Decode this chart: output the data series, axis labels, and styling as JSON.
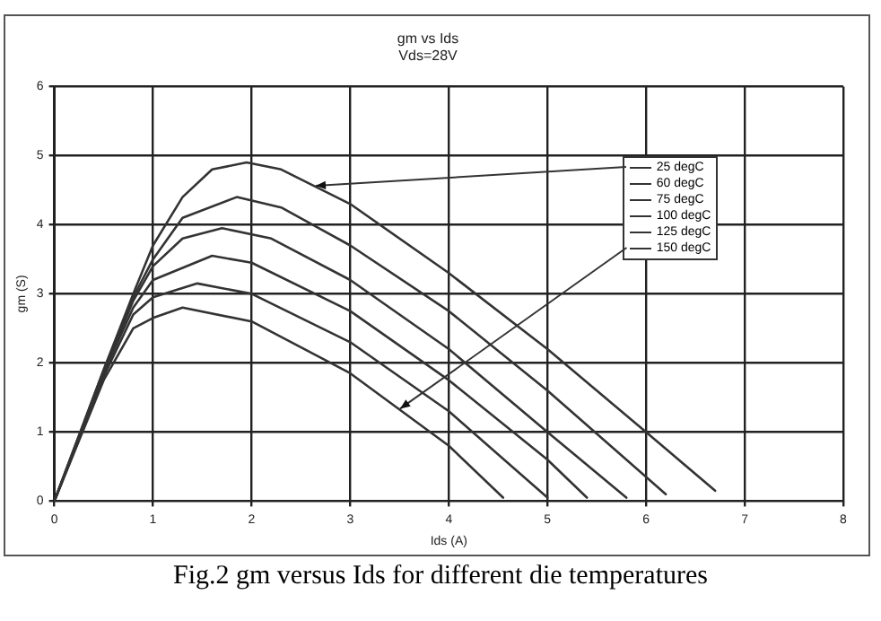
{
  "chart_data": {
    "type": "line",
    "title": "gm vs Ids",
    "subtitle": "Vds=28V",
    "xlabel": "Ids (A)",
    "ylabel": "gm (S)",
    "annotations": [
      "Fig.2 gm versus Ids for different die temperatures"
    ],
    "xlim": [
      0,
      8
    ],
    "ylim": [
      0,
      6
    ],
    "xticks": [
      0,
      1,
      2,
      3,
      4,
      5,
      6,
      7,
      8
    ],
    "yticks": [
      0,
      1,
      2,
      3,
      4,
      5,
      6
    ],
    "grid": true,
    "legend": "right",
    "marker": "none",
    "line_style": "solid",
    "series": [
      {
        "name": "25 degC",
        "color": "#333333",
        "x": [
          0,
          0.5,
          0.8,
          1.0,
          1.3,
          1.6,
          1.95,
          2.3,
          3,
          4,
          5,
          6,
          6.7
        ],
        "values": [
          0,
          1.9,
          3.0,
          3.7,
          4.4,
          4.8,
          4.9,
          4.8,
          4.3,
          3.3,
          2.2,
          1.0,
          0.15
        ]
      },
      {
        "name": "60 degC",
        "color": "#333333",
        "x": [
          0,
          0.5,
          0.8,
          1.0,
          1.3,
          1.85,
          2.3,
          3,
          4,
          5,
          6.2
        ],
        "values": [
          0,
          1.9,
          2.95,
          3.5,
          4.1,
          4.4,
          4.25,
          3.7,
          2.75,
          1.6,
          0.1
        ]
      },
      {
        "name": "75 degC",
        "color": "#333333",
        "x": [
          0,
          0.5,
          0.8,
          1.0,
          1.3,
          1.7,
          2.2,
          3,
          4,
          5,
          5.8
        ],
        "values": [
          0,
          1.85,
          2.9,
          3.4,
          3.8,
          3.95,
          3.8,
          3.2,
          2.2,
          1.0,
          0.05
        ]
      },
      {
        "name": "100 degC",
        "color": "#333333",
        "x": [
          0,
          0.5,
          0.8,
          1.0,
          1.6,
          2,
          3,
          4,
          5,
          5.4
        ],
        "values": [
          0,
          1.85,
          2.8,
          3.2,
          3.55,
          3.45,
          2.75,
          1.75,
          0.6,
          0.05
        ]
      },
      {
        "name": "125 degC",
        "color": "#333333",
        "x": [
          0,
          0.5,
          0.8,
          1.0,
          1.45,
          2,
          3,
          4,
          5
        ],
        "values": [
          0,
          1.8,
          2.7,
          2.95,
          3.15,
          3.0,
          2.3,
          1.3,
          0.05
        ]
      },
      {
        "name": "150 degC",
        "color": "#333333",
        "x": [
          0,
          0.5,
          0.8,
          1.0,
          1.3,
          2,
          3,
          4,
          4.55
        ],
        "values": [
          0,
          1.75,
          2.5,
          2.65,
          2.8,
          2.6,
          1.85,
          0.8,
          0.05
        ]
      }
    ]
  }
}
